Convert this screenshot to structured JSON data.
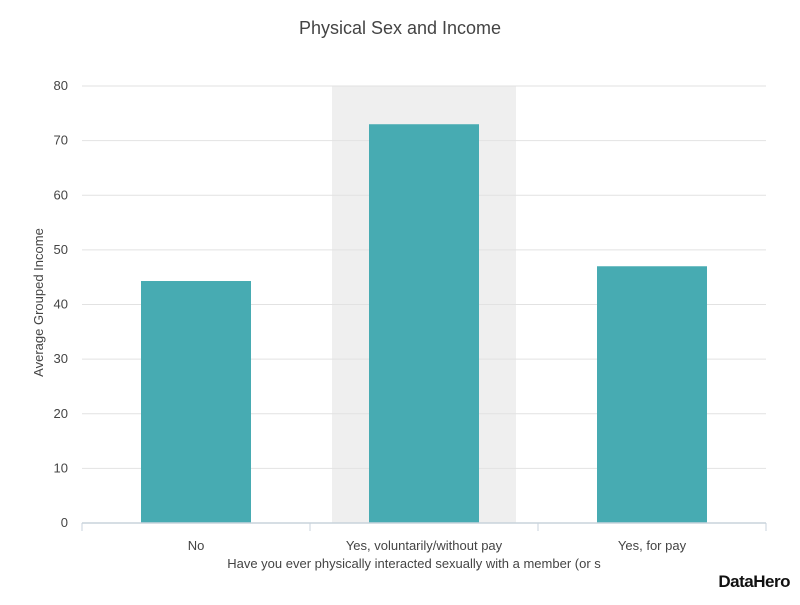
{
  "chart_data": {
    "type": "bar",
    "title": "Physical Sex and Income",
    "xlabel": "Have you ever physically interacted sexually with a member (or s",
    "ylabel": "Average Grouped Income",
    "categories": [
      "No",
      "Yes, voluntarily/without pay",
      "Yes, for pay"
    ],
    "values": [
      44.3,
      73,
      47
    ],
    "ylim": [
      0,
      80
    ],
    "yticks": [
      0,
      10,
      20,
      30,
      40,
      50,
      60,
      70,
      80
    ],
    "grid": true,
    "highlighted_category": "Yes, voluntarily/without pay",
    "colors": {
      "bar": "#47abb2",
      "highlight_band": "#efefef",
      "grid": "#e2e2e2",
      "axis": "#c8d3dc",
      "text": "#444444"
    }
  },
  "branding": {
    "logo_text": "DataHero"
  }
}
